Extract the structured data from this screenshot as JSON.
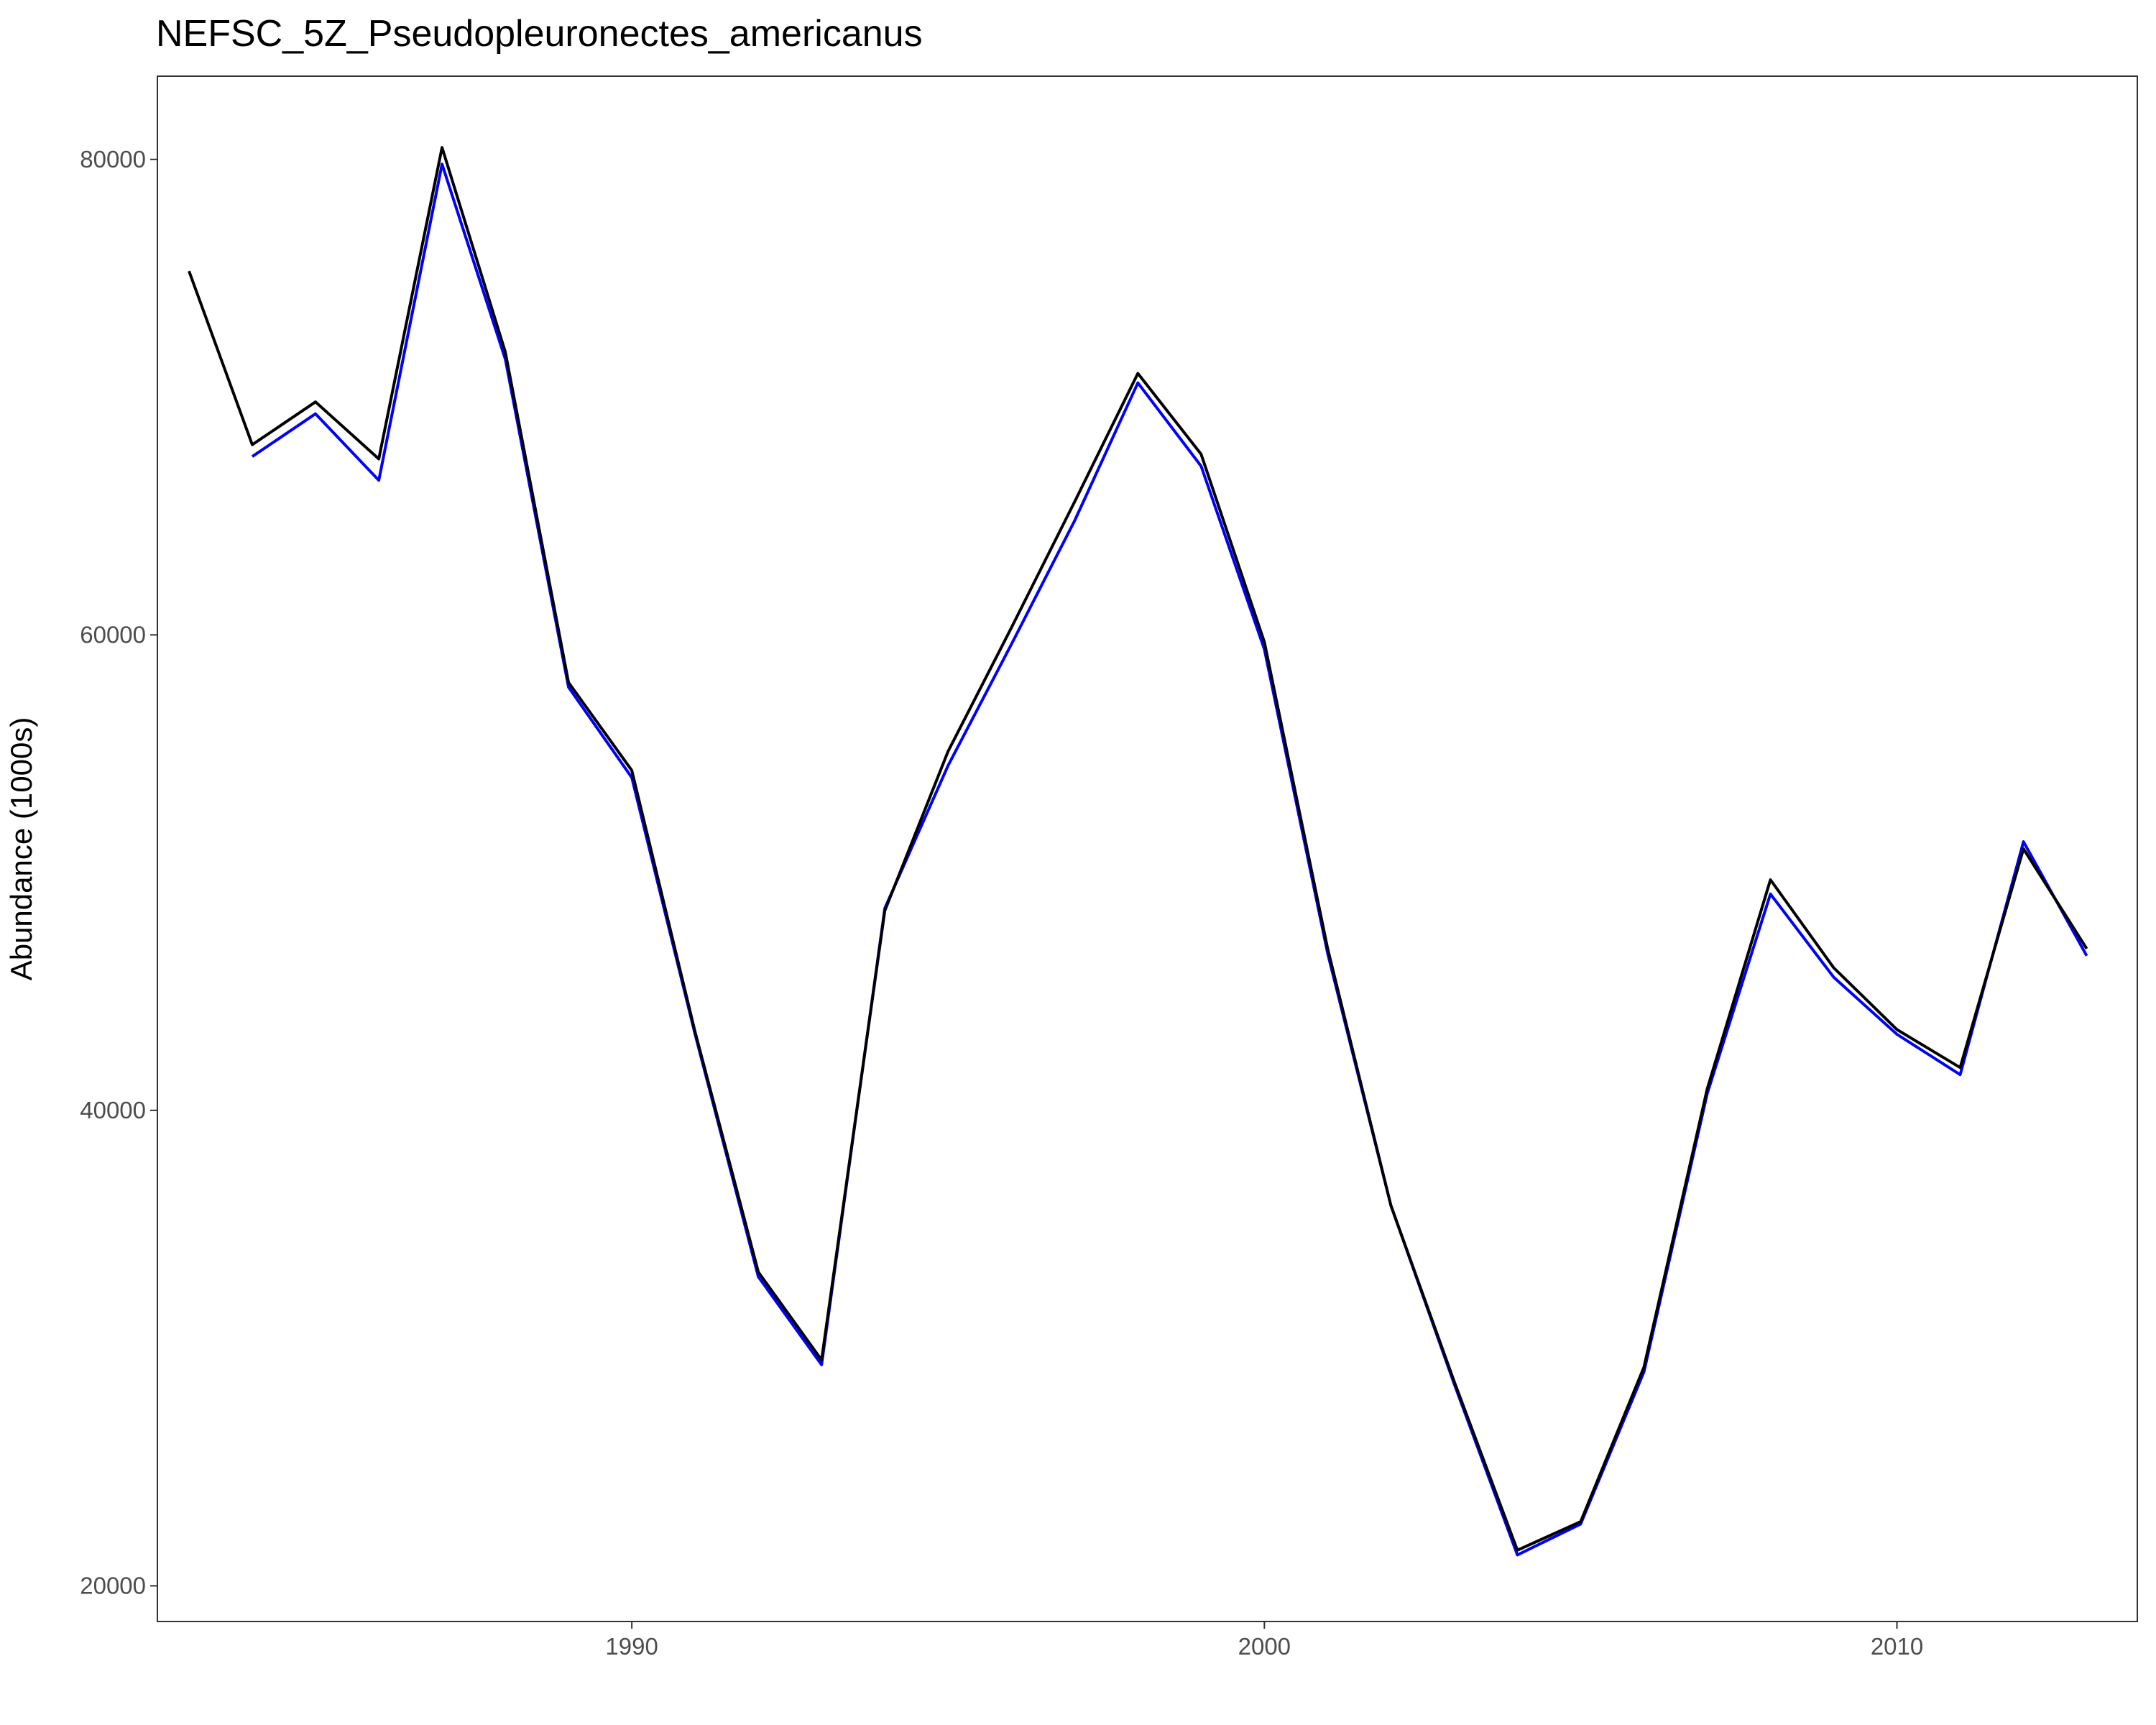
{
  "chart_data": {
    "type": "line",
    "title": "NEFSC_5Z_Pseudopleuronectes_americanus",
    "xlabel": "",
    "ylabel": "Abundance (1000s)",
    "xlim": [
      1982.5,
      2013.8
    ],
    "ylim": [
      18500,
      83500
    ],
    "x_ticks": [
      1990,
      2000,
      2010
    ],
    "y_ticks": [
      20000,
      40000,
      60000,
      80000
    ],
    "grid": false,
    "legend": "none",
    "series": [
      {
        "color": "#0000ff",
        "x": [
          1984,
          1985,
          1986,
          1987,
          1988,
          1989,
          1990,
          1991,
          1992,
          1993,
          1994,
          1995,
          1996,
          1997,
          1998,
          1999,
          2000,
          2001,
          2002,
          2003,
          2004,
          2005,
          2006,
          2007,
          2008,
          2009,
          2010,
          2011,
          2012,
          2013
        ],
        "y": [
          67500,
          69300,
          66500,
          79800,
          71600,
          57800,
          54000,
          43200,
          33000,
          29300,
          48500,
          54500,
          59600,
          64800,
          70600,
          67100,
          59400,
          46600,
          36000,
          28500,
          21300,
          22600,
          29000,
          40700,
          49100,
          45600,
          43200,
          41500,
          51300,
          46500
        ]
      },
      {
        "color": "#000000",
        "x": [
          1983,
          1984,
          1985,
          1986,
          1987,
          1988,
          1989,
          1990,
          1991,
          1992,
          1993,
          1994,
          1995,
          1996,
          1997,
          1998,
          1999,
          2000,
          2001,
          2002,
          2003,
          2004,
          2005,
          2006,
          2007,
          2008,
          2009,
          2010,
          2011,
          2012,
          2013
        ],
        "y": [
          75300,
          68000,
          69800,
          67400,
          80500,
          71900,
          58000,
          54300,
          43300,
          33200,
          29500,
          48400,
          55100,
          60300,
          65600,
          71000,
          67600,
          59700,
          46800,
          36000,
          28600,
          21500,
          22700,
          29200,
          40900,
          49700,
          46000,
          43400,
          41800,
          51000,
          46800
        ]
      }
    ]
  }
}
